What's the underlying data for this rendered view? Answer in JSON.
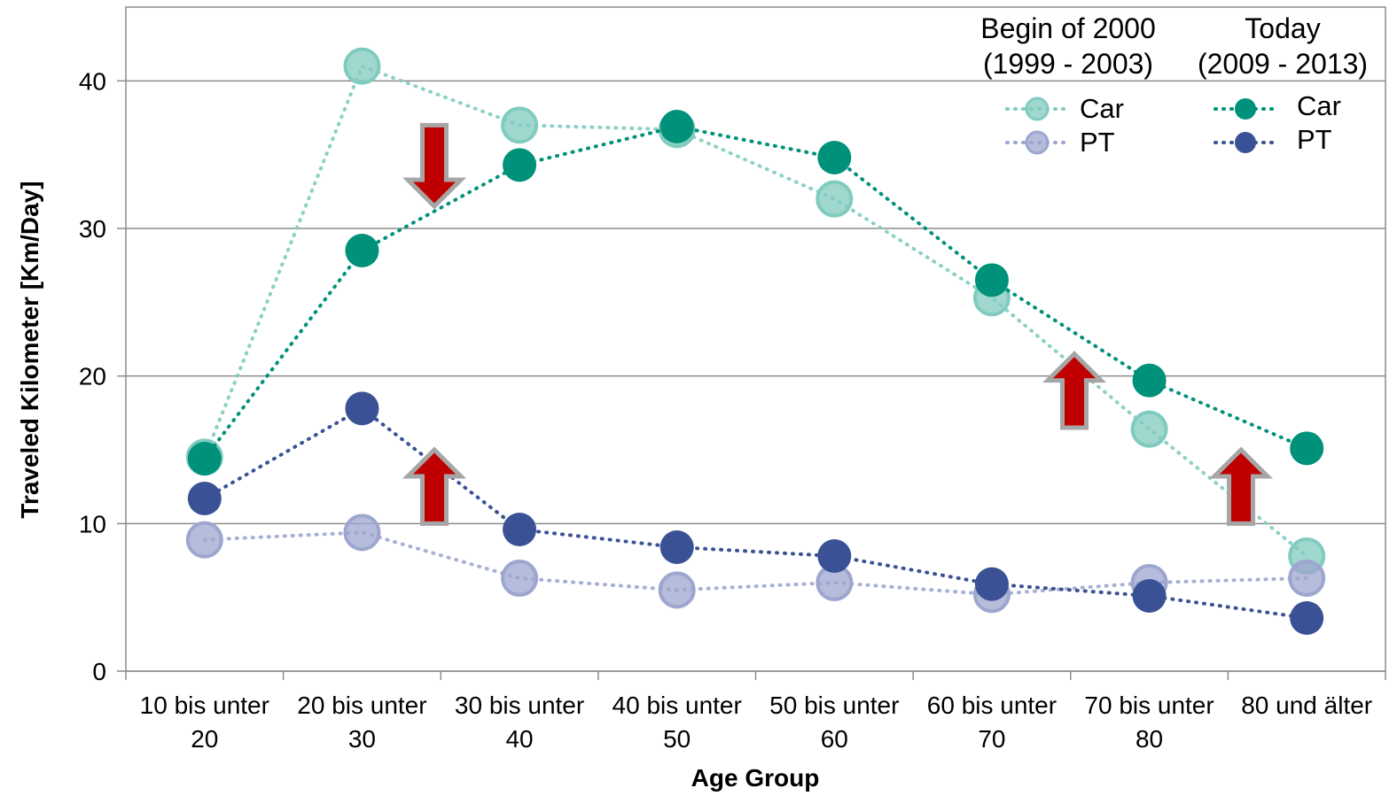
{
  "chart_data": {
    "type": "line",
    "xlabel": "Age Group",
    "ylabel": "Traveled Kilometer [Km/Day]",
    "ylim": [
      0,
      45
    ],
    "yticks": [
      0,
      10,
      20,
      30,
      40
    ],
    "grid": "horizontal",
    "categories": [
      [
        "10 bis unter",
        "20"
      ],
      [
        "20 bis unter",
        "30"
      ],
      [
        "30 bis unter",
        "40"
      ],
      [
        "40 bis unter",
        "50"
      ],
      [
        "50 bis unter",
        "60"
      ],
      [
        "60 bis unter",
        "70"
      ],
      [
        "70 bis unter",
        "80"
      ],
      [
        "80 und älter",
        ""
      ]
    ],
    "legend": {
      "position": "top-right",
      "groups": [
        {
          "heading": [
            "Begin of 2000",
            "(1999 - 2003)"
          ],
          "items": [
            "Car",
            "PT"
          ]
        },
        {
          "heading": [
            "Today",
            "(2009 - 2013)"
          ],
          "items": [
            "Car",
            "PT"
          ]
        }
      ]
    },
    "series": [
      {
        "name": "Car",
        "period": "Begin of 2000",
        "color": "#80cbbf",
        "faded": true,
        "values": [
          14.5,
          41.0,
          37.0,
          36.7,
          32.0,
          25.3,
          16.4,
          7.8
        ]
      },
      {
        "name": "PT",
        "period": "Begin of 2000",
        "color": "#9da6cf",
        "faded": true,
        "values": [
          8.9,
          9.4,
          6.3,
          5.5,
          6.0,
          5.2,
          6.0,
          6.3
        ]
      },
      {
        "name": "Car",
        "period": "Today",
        "color": "#00917a",
        "faded": false,
        "values": [
          14.4,
          28.5,
          34.3,
          36.9,
          34.8,
          26.5,
          19.7,
          15.1
        ]
      },
      {
        "name": "PT",
        "period": "Today",
        "color": "#3a5295",
        "faded": false,
        "values": [
          11.7,
          17.8,
          9.6,
          8.4,
          7.8,
          5.9,
          5.1,
          3.6
        ]
      }
    ],
    "annotations": [
      {
        "type": "arrow",
        "direction": "down",
        "color": "#c00000",
        "x_between": [
          1,
          2
        ],
        "y_range": [
          31.5,
          37.0
        ]
      },
      {
        "type": "arrow",
        "direction": "up",
        "color": "#c00000",
        "x_between": [
          1,
          2
        ],
        "y_range": [
          10.0,
          15.0
        ]
      },
      {
        "type": "arrow",
        "direction": "up",
        "color": "#c00000",
        "x_between": [
          5,
          6
        ],
        "y_range": [
          16.5,
          21.5
        ]
      },
      {
        "type": "arrow",
        "direction": "up",
        "color": "#c00000",
        "x_between": [
          6,
          7
        ],
        "y_range": [
          10.0,
          15.0
        ]
      }
    ]
  }
}
